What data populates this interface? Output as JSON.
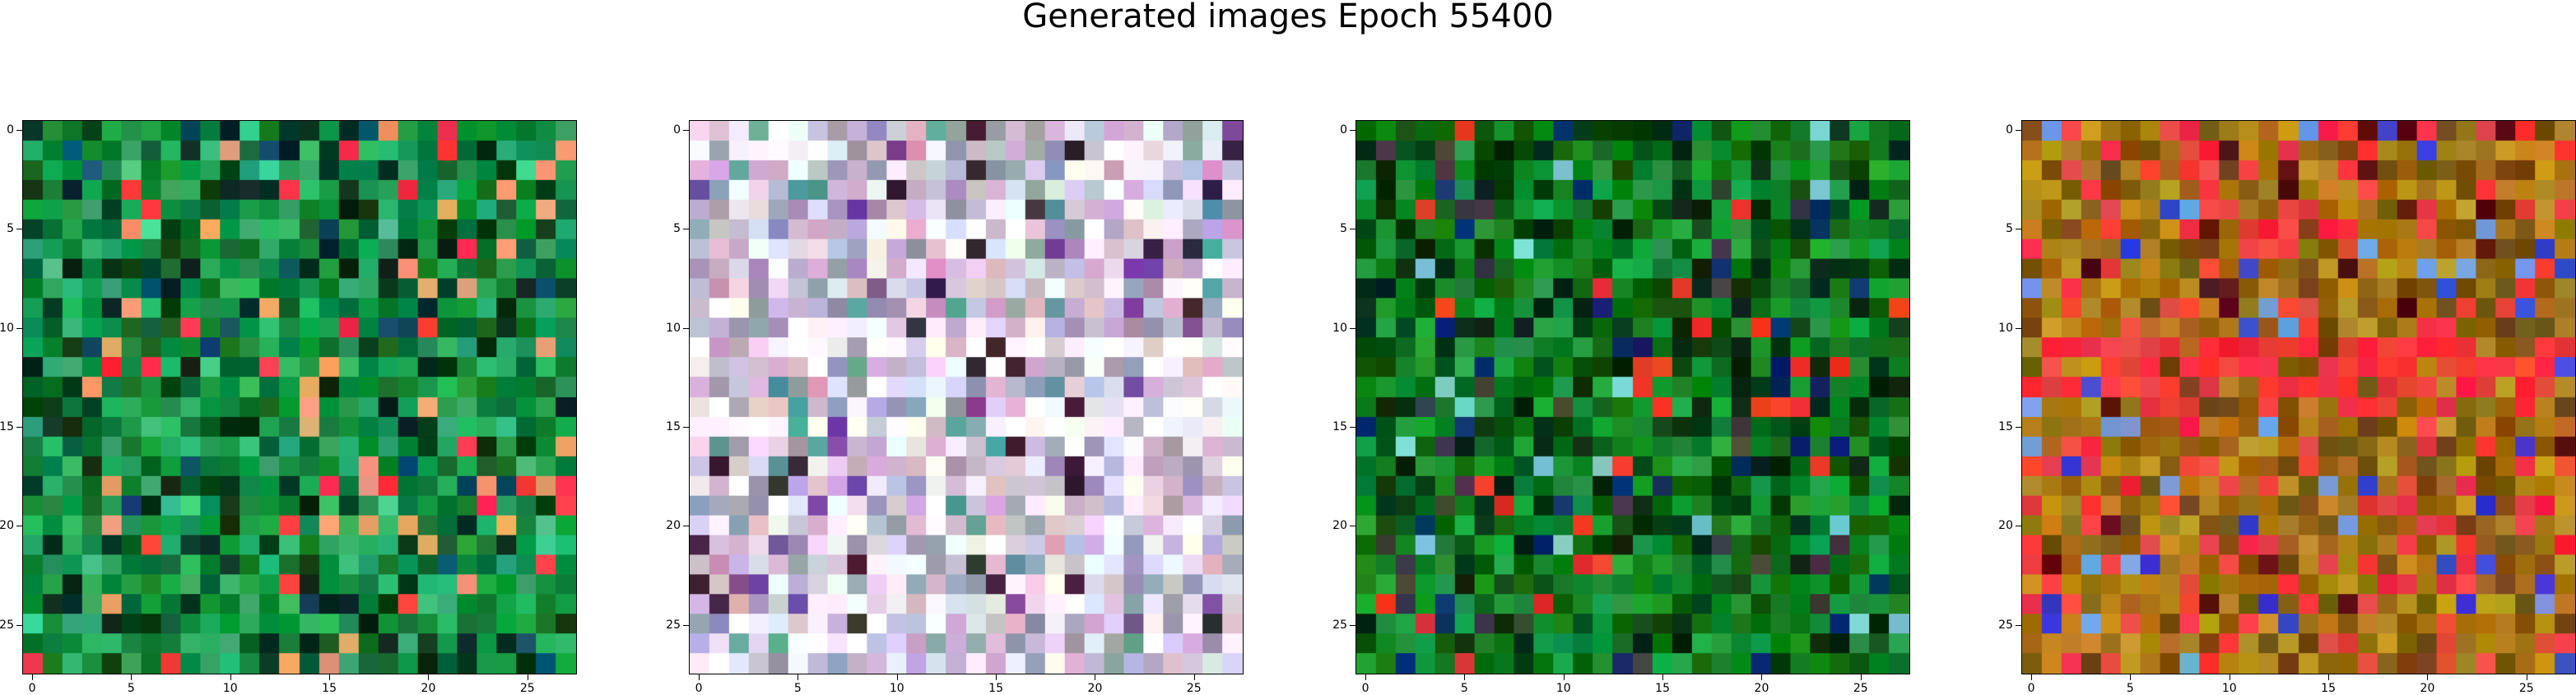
{
  "figure": {
    "title": "Generated images Epoch 55400"
  },
  "panels": [
    {
      "name": "generated-image-1",
      "dominant_colors": [
        "#0a8a3a",
        "#1a9a4a",
        "#0e6e2e",
        "#2fb06a",
        "#05301a",
        "#46d08a",
        "#0b4a6a",
        "#ff3344",
        "#f0a070"
      ],
      "x_ticks": [
        "0",
        "5",
        "10",
        "15",
        "20",
        "25"
      ],
      "y_ticks": [
        "0",
        "5",
        "10",
        "15",
        "20",
        "25"
      ]
    },
    {
      "name": "generated-image-2",
      "dominant_colors": [
        "#c7b7d7",
        "#d8c0d0",
        "#9a9ab0",
        "#e8e0f0",
        "#ffffff",
        "#7a4a9a",
        "#5aa09a",
        "#d0a0c0",
        "#3a2a3a"
      ],
      "x_ticks": [
        "0",
        "5",
        "10",
        "15",
        "20",
        "25"
      ],
      "y_ticks": [
        "0",
        "5",
        "10",
        "15",
        "20",
        "25"
      ]
    },
    {
      "name": "generated-image-3",
      "dominant_colors": [
        "#0a7a1a",
        "#108a2a",
        "#0a5a10",
        "#1ea040",
        "#033010",
        "#e83a2a",
        "#7ad0d0",
        "#0a2a6a",
        "#404040"
      ],
      "x_ticks": [
        "0",
        "5",
        "10",
        "15",
        "20",
        "25"
      ],
      "y_ticks": [
        "0",
        "5",
        "10",
        "15",
        "20",
        "25"
      ]
    },
    {
      "name": "generated-image-4",
      "dominant_colors": [
        "#b07a1a",
        "#9a6a10",
        "#c09020",
        "#7a5010",
        "#f04040",
        "#ff2a3a",
        "#3a40d0",
        "#70a0e0",
        "#5a1010"
      ],
      "x_ticks": [
        "0",
        "5",
        "10",
        "15",
        "20",
        "25"
      ],
      "y_ticks": [
        "0",
        "5",
        "10",
        "15",
        "20",
        "25"
      ]
    }
  ]
}
